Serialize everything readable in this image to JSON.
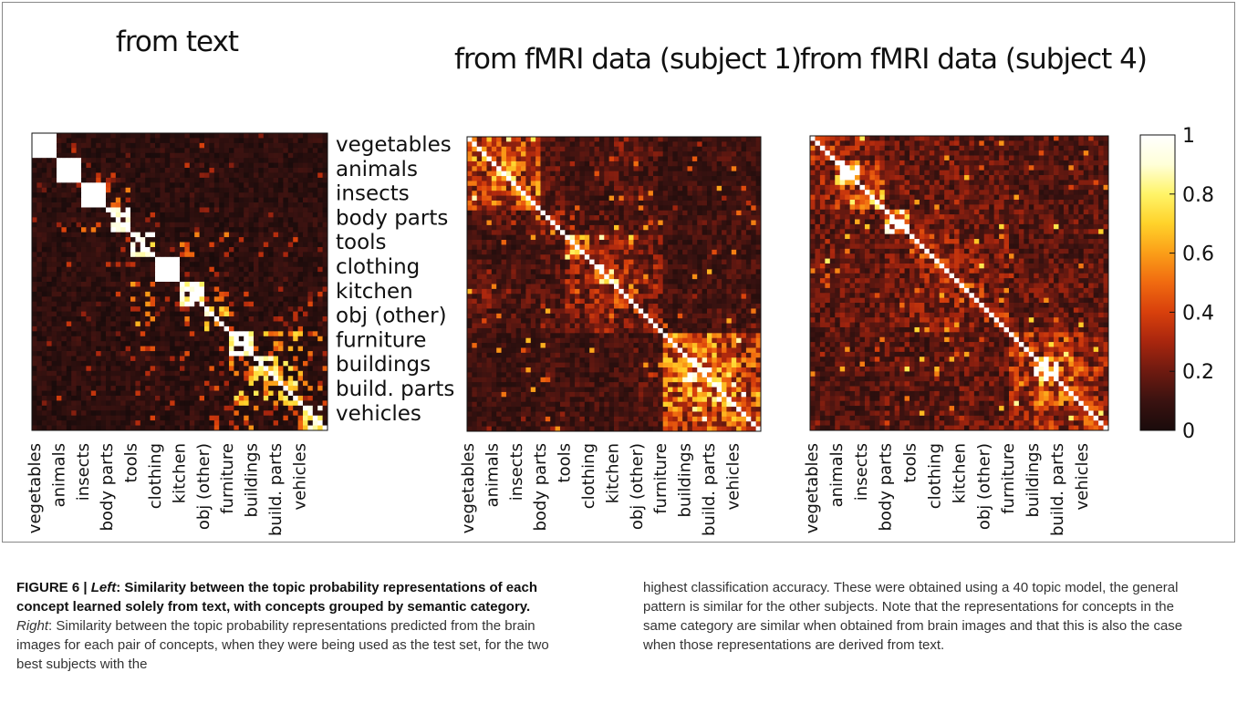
{
  "chart_data": [
    {
      "type": "heatmap",
      "title": "from text",
      "categories": [
        "vegetables",
        "animals",
        "insects",
        "body parts",
        "tools",
        "clothing",
        "kitchen",
        "obj (other)",
        "furniture",
        "buildings",
        "build. parts",
        "vehicles"
      ],
      "items_per_category": 5,
      "category_mean_similarity": [
        [
          1.0,
          0.06,
          0.04,
          0.05,
          0.02,
          0.03,
          0.05,
          0.03,
          0.02,
          0.02,
          0.03,
          0.02
        ],
        [
          0.06,
          1.0,
          0.08,
          0.1,
          0.03,
          0.04,
          0.04,
          0.04,
          0.03,
          0.05,
          0.04,
          0.03
        ],
        [
          0.04,
          0.08,
          1.0,
          0.25,
          0.03,
          0.03,
          0.03,
          0.03,
          0.03,
          0.03,
          0.03,
          0.03
        ],
        [
          0.05,
          0.1,
          0.25,
          0.7,
          0.05,
          0.06,
          0.08,
          0.06,
          0.05,
          0.05,
          0.05,
          0.04
        ],
        [
          0.02,
          0.03,
          0.03,
          0.05,
          0.7,
          0.05,
          0.35,
          0.3,
          0.1,
          0.08,
          0.12,
          0.08
        ],
        [
          0.03,
          0.04,
          0.03,
          0.06,
          0.05,
          1.0,
          0.08,
          0.06,
          0.05,
          0.04,
          0.05,
          0.04
        ],
        [
          0.05,
          0.04,
          0.03,
          0.08,
          0.35,
          0.08,
          0.75,
          0.22,
          0.1,
          0.1,
          0.1,
          0.08
        ],
        [
          0.03,
          0.04,
          0.03,
          0.06,
          0.3,
          0.06,
          0.22,
          0.55,
          0.15,
          0.12,
          0.12,
          0.12
        ],
        [
          0.02,
          0.03,
          0.03,
          0.05,
          0.1,
          0.05,
          0.1,
          0.15,
          0.75,
          0.35,
          0.4,
          0.25
        ],
        [
          0.02,
          0.05,
          0.03,
          0.05,
          0.08,
          0.04,
          0.1,
          0.12,
          0.35,
          0.6,
          0.45,
          0.2
        ],
        [
          0.03,
          0.04,
          0.03,
          0.05,
          0.12,
          0.05,
          0.1,
          0.12,
          0.4,
          0.45,
          0.55,
          0.25
        ],
        [
          0.02,
          0.03,
          0.03,
          0.04,
          0.08,
          0.04,
          0.08,
          0.12,
          0.25,
          0.2,
          0.25,
          0.65
        ]
      ]
    },
    {
      "type": "heatmap",
      "title": "from fMRI data (subject 1)",
      "categories": [
        "vegetables",
        "animals",
        "insects",
        "body parts",
        "tools",
        "clothing",
        "kitchen",
        "obj (other)",
        "furniture",
        "buildings",
        "build. parts",
        "vehicles"
      ],
      "items_per_category": 5,
      "category_mean_similarity": [
        [
          0.45,
          0.4,
          0.35,
          0.15,
          0.12,
          0.15,
          0.2,
          0.15,
          0.1,
          0.1,
          0.12,
          0.1
        ],
        [
          0.4,
          0.55,
          0.4,
          0.18,
          0.1,
          0.15,
          0.15,
          0.12,
          0.1,
          0.1,
          0.1,
          0.1
        ],
        [
          0.35,
          0.4,
          0.45,
          0.15,
          0.12,
          0.12,
          0.15,
          0.12,
          0.1,
          0.1,
          0.1,
          0.1
        ],
        [
          0.15,
          0.18,
          0.15,
          0.25,
          0.15,
          0.15,
          0.15,
          0.15,
          0.12,
          0.12,
          0.12,
          0.12
        ],
        [
          0.12,
          0.1,
          0.12,
          0.15,
          0.55,
          0.25,
          0.25,
          0.2,
          0.1,
          0.1,
          0.12,
          0.1
        ],
        [
          0.15,
          0.15,
          0.12,
          0.15,
          0.25,
          0.55,
          0.3,
          0.25,
          0.12,
          0.12,
          0.12,
          0.12
        ],
        [
          0.2,
          0.15,
          0.15,
          0.15,
          0.25,
          0.3,
          0.4,
          0.2,
          0.12,
          0.12,
          0.12,
          0.12
        ],
        [
          0.15,
          0.12,
          0.12,
          0.15,
          0.2,
          0.25,
          0.2,
          0.25,
          0.12,
          0.12,
          0.15,
          0.12
        ],
        [
          0.1,
          0.1,
          0.1,
          0.12,
          0.1,
          0.12,
          0.12,
          0.12,
          0.5,
          0.45,
          0.45,
          0.35
        ],
        [
          0.1,
          0.1,
          0.1,
          0.12,
          0.1,
          0.12,
          0.12,
          0.12,
          0.45,
          0.7,
          0.5,
          0.4
        ],
        [
          0.12,
          0.1,
          0.1,
          0.12,
          0.12,
          0.12,
          0.12,
          0.15,
          0.45,
          0.5,
          0.6,
          0.4
        ],
        [
          0.1,
          0.1,
          0.1,
          0.12,
          0.1,
          0.12,
          0.12,
          0.12,
          0.35,
          0.4,
          0.4,
          0.45
        ]
      ]
    },
    {
      "type": "heatmap",
      "title": "from fMRI data (subject 4)",
      "categories": [
        "vegetables",
        "animals",
        "insects",
        "body parts",
        "tools",
        "clothing",
        "kitchen",
        "obj (other)",
        "furniture",
        "buildings",
        "build. parts",
        "vehicles"
      ],
      "items_per_category": 5,
      "category_mean_similarity": [
        [
          0.35,
          0.25,
          0.22,
          0.18,
          0.18,
          0.2,
          0.18,
          0.18,
          0.15,
          0.15,
          0.15,
          0.15
        ],
        [
          0.25,
          0.75,
          0.35,
          0.2,
          0.18,
          0.2,
          0.2,
          0.18,
          0.15,
          0.15,
          0.15,
          0.15
        ],
        [
          0.22,
          0.35,
          0.5,
          0.2,
          0.18,
          0.18,
          0.18,
          0.18,
          0.15,
          0.15,
          0.15,
          0.15
        ],
        [
          0.18,
          0.2,
          0.2,
          0.7,
          0.2,
          0.2,
          0.2,
          0.2,
          0.18,
          0.18,
          0.18,
          0.18
        ],
        [
          0.18,
          0.18,
          0.18,
          0.2,
          0.35,
          0.25,
          0.22,
          0.22,
          0.15,
          0.15,
          0.15,
          0.15
        ],
        [
          0.2,
          0.2,
          0.18,
          0.2,
          0.25,
          0.35,
          0.25,
          0.22,
          0.18,
          0.18,
          0.18,
          0.18
        ],
        [
          0.18,
          0.2,
          0.18,
          0.2,
          0.22,
          0.25,
          0.35,
          0.22,
          0.18,
          0.18,
          0.18,
          0.18
        ],
        [
          0.18,
          0.18,
          0.18,
          0.2,
          0.22,
          0.22,
          0.22,
          0.3,
          0.18,
          0.18,
          0.18,
          0.18
        ],
        [
          0.15,
          0.15,
          0.15,
          0.18,
          0.15,
          0.18,
          0.18,
          0.18,
          0.35,
          0.3,
          0.3,
          0.25
        ],
        [
          0.15,
          0.15,
          0.15,
          0.18,
          0.15,
          0.18,
          0.18,
          0.18,
          0.3,
          0.75,
          0.4,
          0.3
        ],
        [
          0.15,
          0.15,
          0.15,
          0.18,
          0.15,
          0.18,
          0.18,
          0.18,
          0.3,
          0.4,
          0.4,
          0.3
        ],
        [
          0.15,
          0.15,
          0.15,
          0.18,
          0.15,
          0.18,
          0.18,
          0.18,
          0.25,
          0.3,
          0.3,
          0.35
        ]
      ]
    }
  ],
  "colorbar": {
    "ticks": [
      "1",
      "0.8",
      "0.6",
      "0.4",
      "0.2",
      "0"
    ],
    "colormap": [
      "#1a0b0b",
      "#3a1210",
      "#6e1a10",
      "#a8260e",
      "#d8400c",
      "#f06a10",
      "#fb9e18",
      "#ffd22a",
      "#fff468",
      "#ffffd8",
      "#ffffff"
    ]
  },
  "caption": {
    "label": "FIGURE 6 | ",
    "left_em": "Left",
    "left_bold": ": Similarity between the topic probability representations of each concept learned solely from text, with concepts grouped by semantic category.",
    "right_em": "Right",
    "right_text": ": Similarity between the topic probability representations predicted from the brain images for each pair of concepts, when they were being used as the test set, for the two best subjects with the",
    "right_column": "highest classification accuracy. These were obtained using a 40 topic model, the general pattern is similar for the other subjects. Note that the representations for concepts in the same category are similar when obtained from brain images and that this is also the case when those representations are derived from text."
  }
}
